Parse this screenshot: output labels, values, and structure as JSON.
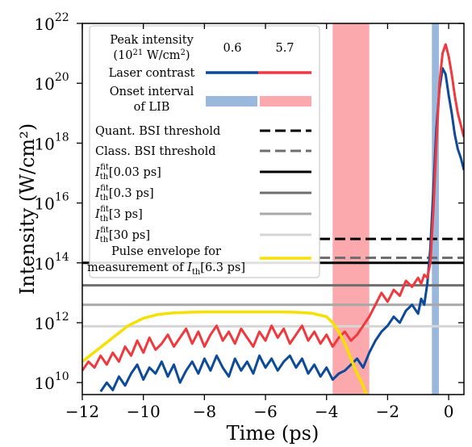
{
  "chart_data": {
    "type": "line",
    "xlabel": "Time (ps)",
    "ylabel": "Intensity (W/cm²)",
    "xlim": [
      -12,
      0.5
    ],
    "ylim_exponent": [
      9.6,
      22
    ],
    "y_scale": "log",
    "grid": false,
    "legend_placement": "top-left",
    "x_ticks": [
      -12,
      -10,
      -8,
      -6,
      -4,
      -2,
      0
    ],
    "x_tick_labels": [
      "−12",
      "−10",
      "−8",
      "−6",
      "−4",
      "−2",
      "0"
    ],
    "y_ticks_exponent": [
      10,
      12,
      14,
      16,
      18,
      20,
      22
    ],
    "y_tick_base": "10",
    "y_tick_exponents_text": [
      "10",
      "12",
      "14",
      "16",
      "18",
      "20",
      "22"
    ],
    "legend": {
      "header_label_line1": "Peak intensity",
      "header_label_line2_prefix": "(10",
      "header_label_line2_exp": "21",
      "header_label_line2_mid": " W/cm",
      "header_label_line2_exp2": "2",
      "header_label_line2_suffix": ")",
      "col1": "0.6",
      "col2": "5.7",
      "laser_contrast": "Laser contrast",
      "onset_line1": "Onset interval",
      "onset_line2": "of LIB",
      "quant_bsi": "Quant. BSI threshold",
      "class_bsi": "Class. BSI threshold",
      "ith_sym": "I",
      "ith_sub": "th",
      "ith_sup": "fit",
      "ith_003": "[0.03 ps]",
      "ith_03": "[0.3 ps]",
      "ith_3": "[3 ps]",
      "ith_30": "[30 ps]",
      "pulse_line1": "Pulse envelope for",
      "pulse_line2_prefix": "measurement of ",
      "pulse_line2_suffix": "[6.3 ps]"
    },
    "colors": {
      "blue": "#0d4a99",
      "red": "#f0393e",
      "blue_band": "#9ab8dc",
      "red_band": "#fba9ad",
      "yellow": "#f5e000",
      "black": "#000000",
      "dark_gray": "#6e6e6e",
      "mid_gray": "#a8a8a8",
      "light_gray": "#d6d6d6"
    },
    "onset_intervals": [
      {
        "series": "5.7",
        "x_start": -3.8,
        "x_end": -2.6
      },
      {
        "series": "0.6",
        "x_start": -0.55,
        "x_end": -0.32
      }
    ],
    "thresholds": [
      {
        "name": "Quant. BSI threshold",
        "log10_y": 14.8,
        "style": "dashed",
        "color": "black"
      },
      {
        "name": "Class. BSI threshold",
        "log10_y": 14.17,
        "style": "dashed",
        "color": "dark_gray"
      },
      {
        "name": "Ith fit [0.03 ps]",
        "log10_y": 14.0,
        "style": "solid",
        "color": "black"
      },
      {
        "name": "Ith fit [0.3 ps]",
        "log10_y": 13.25,
        "style": "solid",
        "color": "dark_gray"
      },
      {
        "name": "Ith fit [3 ps]",
        "log10_y": 12.6,
        "style": "solid",
        "color": "mid_gray"
      },
      {
        "name": "Ith fit [30 ps]",
        "log10_y": 11.88,
        "style": "solid",
        "color": "light_gray"
      }
    ],
    "series": [
      {
        "name": "0.6",
        "color": "blue",
        "x": [
          -11.4,
          -11.2,
          -11.0,
          -10.8,
          -10.6,
          -10.4,
          -10.2,
          -10.0,
          -9.8,
          -9.6,
          -9.4,
          -9.2,
          -9.0,
          -8.8,
          -8.6,
          -8.4,
          -8.2,
          -8.0,
          -7.8,
          -7.6,
          -7.4,
          -7.2,
          -7.0,
          -6.8,
          -6.6,
          -6.4,
          -6.2,
          -6.0,
          -5.8,
          -5.6,
          -5.4,
          -5.2,
          -5.0,
          -4.8,
          -4.6,
          -4.4,
          -4.2,
          -4.0,
          -3.8,
          -3.6,
          -3.4,
          -3.2,
          -3.0,
          -2.8,
          -2.6,
          -2.4,
          -2.2,
          -2.0,
          -1.8,
          -1.6,
          -1.4,
          -1.2,
          -1.0,
          -0.9,
          -0.8,
          -0.7,
          -0.6,
          -0.5,
          -0.4,
          -0.3,
          -0.2,
          -0.1,
          0.0,
          0.1,
          0.2,
          0.3,
          0.4,
          0.5
        ],
        "log10_y": [
          9.7,
          10.0,
          9.75,
          10.2,
          9.9,
          10.3,
          10.6,
          10.1,
          10.5,
          10.3,
          10.7,
          10.2,
          10.6,
          10.0,
          10.4,
          10.7,
          10.3,
          10.8,
          10.4,
          10.9,
          10.5,
          10.2,
          10.8,
          10.4,
          10.7,
          10.3,
          10.9,
          10.5,
          10.8,
          10.4,
          10.7,
          10.9,
          10.5,
          10.8,
          10.3,
          10.6,
          10.2,
          10.5,
          10.1,
          10.3,
          10.4,
          10.6,
          10.8,
          10.5,
          11.0,
          11.4,
          11.7,
          11.9,
          12.2,
          12.0,
          12.4,
          12.6,
          12.3,
          12.8,
          12.6,
          13.3,
          14.5,
          16.5,
          18.5,
          19.8,
          20.5,
          20.3,
          19.6,
          19.0,
          18.3,
          17.8,
          17.5,
          17.1
        ]
      },
      {
        "name": "5.7",
        "color": "red",
        "x": [
          -12.0,
          -11.8,
          -11.6,
          -11.4,
          -11.2,
          -11.0,
          -10.8,
          -10.6,
          -10.4,
          -10.2,
          -10.0,
          -9.8,
          -9.6,
          -9.4,
          -9.2,
          -9.0,
          -8.8,
          -8.6,
          -8.4,
          -8.2,
          -8.0,
          -7.8,
          -7.6,
          -7.4,
          -7.2,
          -7.0,
          -6.8,
          -6.6,
          -6.4,
          -6.2,
          -6.0,
          -5.8,
          -5.6,
          -5.4,
          -5.2,
          -5.0,
          -4.8,
          -4.6,
          -4.4,
          -4.2,
          -4.0,
          -3.8,
          -3.6,
          -3.4,
          -3.2,
          -3.0,
          -2.8,
          -2.6,
          -2.4,
          -2.2,
          -2.0,
          -1.8,
          -1.6,
          -1.4,
          -1.2,
          -1.0,
          -0.9,
          -0.8,
          -0.7,
          -0.6,
          -0.5,
          -0.4,
          -0.3,
          -0.2,
          -0.1,
          0.0,
          0.1,
          0.2,
          0.3,
          0.4,
          0.5
        ],
        "log10_y": [
          10.4,
          10.7,
          10.5,
          10.9,
          10.6,
          11.0,
          10.7,
          11.2,
          10.9,
          11.4,
          11.0,
          11.5,
          11.1,
          11.3,
          11.6,
          11.2,
          11.5,
          11.8,
          11.3,
          11.7,
          11.2,
          11.6,
          11.9,
          11.4,
          11.7,
          11.3,
          11.8,
          11.5,
          11.2,
          11.7,
          11.4,
          11.9,
          11.5,
          11.8,
          11.3,
          11.6,
          11.9,
          11.4,
          11.7,
          11.3,
          11.6,
          11.2,
          11.5,
          11.7,
          11.4,
          11.6,
          11.9,
          12.2,
          12.6,
          13.0,
          12.7,
          13.1,
          12.9,
          13.4,
          13.2,
          13.5,
          13.3,
          13.6,
          13.5,
          14.0,
          15.8,
          18.0,
          20.0,
          21.0,
          21.3,
          20.9,
          20.3,
          19.6,
          19.0,
          18.6,
          18.2
        ]
      },
      {
        "name": "Pulse envelope",
        "color": "yellow",
        "x": [
          -12.0,
          -11.5,
          -11.0,
          -10.5,
          -10.0,
          -9.5,
          -9.0,
          -8.5,
          -8.0,
          -7.5,
          -7.0,
          -6.5,
          -6.0,
          -5.5,
          -5.0,
          -4.5,
          -4.0,
          -3.8,
          -3.6,
          -3.4,
          -3.2,
          -3.0,
          -2.8,
          -2.7
        ],
        "log10_y": [
          10.7,
          11.1,
          11.5,
          11.9,
          12.15,
          12.28,
          12.33,
          12.35,
          12.36,
          12.36,
          12.36,
          12.36,
          12.36,
          12.36,
          12.35,
          12.32,
          12.2,
          12.0,
          11.7,
          11.3,
          10.8,
          10.3,
          9.9,
          9.6
        ]
      }
    ]
  }
}
